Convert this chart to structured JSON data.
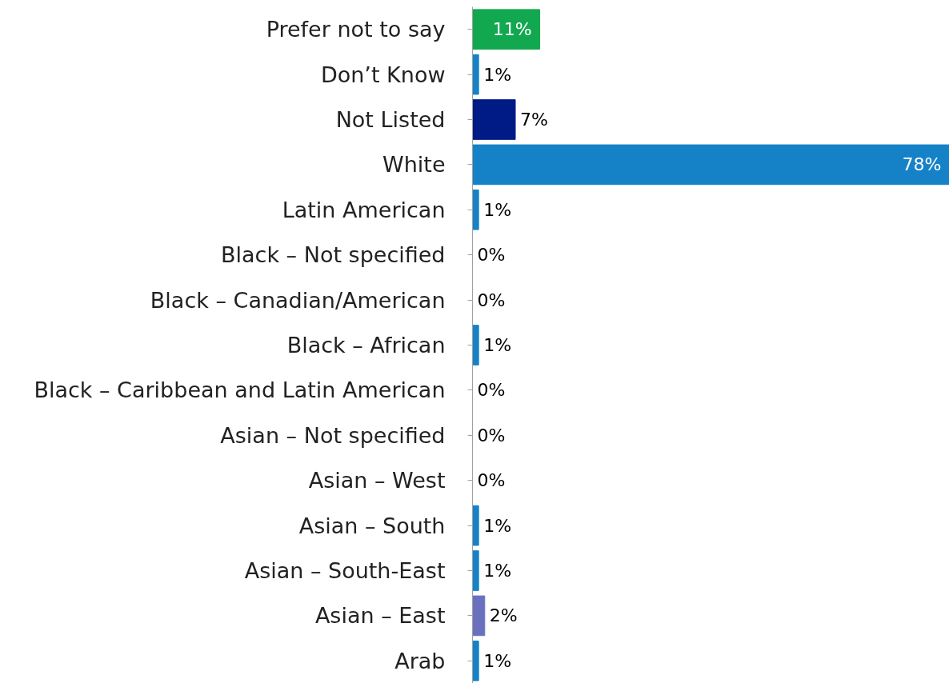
{
  "chart_data": {
    "type": "bar",
    "orientation": "horizontal",
    "categories": [
      "Prefer not to say",
      "Don’t Know",
      "Not Listed",
      "White",
      "Latin American",
      "Black – Not specified",
      "Black – Canadian/American",
      "Black – African",
      "Black – Caribbean and Latin American",
      "Asian – Not specified",
      "Asian – West",
      "Asian – South",
      "Asian – South-East",
      "Asian – East",
      "Arab"
    ],
    "values": [
      11,
      1,
      7,
      78,
      1,
      0,
      0,
      1,
      0,
      0,
      0,
      1,
      1,
      2,
      1
    ],
    "value_labels": [
      "11%",
      "1%",
      "7%",
      "78%",
      "1%",
      "0%",
      "0%",
      "1%",
      "0%",
      "0%",
      "0%",
      "1%",
      "1%",
      "2%",
      "1%"
    ],
    "colors": [
      "#12a84f",
      "#1582c8",
      "#001a86",
      "#1582c8",
      "#1582c8",
      "#1582c8",
      "#1582c8",
      "#1582c8",
      "#1582c8",
      "#1582c8",
      "#1582c8",
      "#1582c8",
      "#1582c8",
      "#6a72c0",
      "#1582c8"
    ],
    "grid": false
  }
}
